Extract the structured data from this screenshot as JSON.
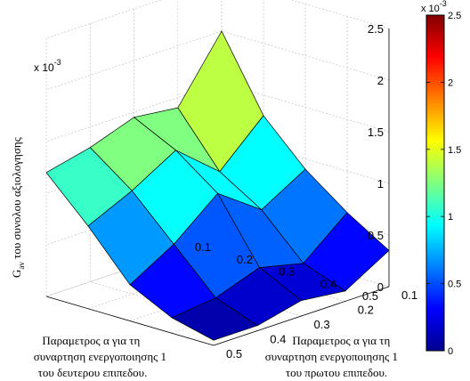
{
  "chart_data": {
    "type": "surface",
    "title": "",
    "x_tick_labels": [
      "0.1",
      "0.2",
      "0.3",
      "0.4",
      "0.5"
    ],
    "y_tick_labels": [
      "0.1",
      "0.2",
      "0.3",
      "0.4",
      "0.5"
    ],
    "z_tick_labels": [
      "0",
      "0.5",
      "1",
      "1.5",
      "2",
      "2.5"
    ],
    "x_label_lines": [
      "Παραμετρος α για τη",
      "συναρτηση ενεργοποιησης 1",
      "του πρωτου επιπεδου."
    ],
    "y_label_lines": [
      "Παραμετρος α για τη",
      "συναρτηση ενεργοποιησης 1",
      "του δευτερου επιπεδου."
    ],
    "z_label_main": "G",
    "z_label_sub": "av",
    "z_label_rest": " του συνολου αξιολογησης",
    "z_exponent_base": "x 10",
    "z_exponent_power": "-3",
    "zlim": [
      0,
      0.0025
    ],
    "colorbar": {
      "range": [
        0,
        0.0025
      ],
      "tick_labels": [
        "0",
        "0.5",
        "1",
        "1.5",
        "2",
        "2.5"
      ],
      "exponent_base": "x 10",
      "exponent_power": "-3"
    },
    "x": [
      0.1,
      0.2,
      0.3,
      0.4,
      0.5
    ],
    "y": [
      0.1,
      0.2,
      0.3,
      0.4,
      0.5
    ],
    "z_note": "z[j][i] with j = y index (0.1..0.5), i = x index (0.1..0.5), units of 1e-3",
    "z": [
      [
        2.0,
        1.4,
        1.45,
        1.3,
        1.2
      ],
      [
        1.3,
        0.9,
        1.25,
        1.0,
        0.8
      ],
      [
        0.9,
        0.65,
        0.95,
        0.6,
        0.35
      ],
      [
        0.6,
        0.25,
        0.35,
        0.2,
        0.15
      ],
      [
        0.35,
        0.1,
        0.15,
        0.05,
        0.05
      ]
    ]
  }
}
